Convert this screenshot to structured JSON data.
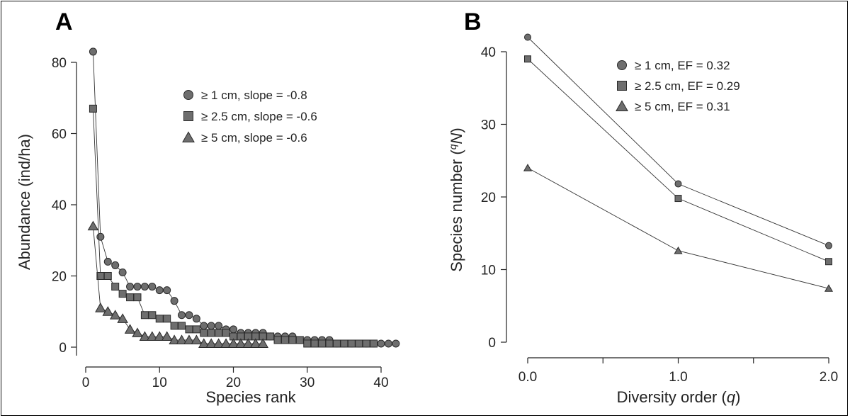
{
  "colors": {
    "marker_fill": "#6e6e6e",
    "marker_stroke": "#2a2a2a",
    "line": "#333333",
    "axis": "#222222"
  },
  "chart_data": [
    {
      "panel_label": "A",
      "type": "line",
      "xlabel": "Species rank",
      "ylabel": "Abundance (ind/ha)",
      "xlim": [
        0,
        43
      ],
      "ylim": [
        0,
        85
      ],
      "xticks": [
        0,
        10,
        20,
        30,
        40
      ],
      "yticks": [
        0,
        20,
        40,
        60,
        80
      ],
      "xtick_labels": [
        "0",
        "10",
        "20",
        "30",
        "40"
      ],
      "ytick_labels": [
        "0",
        "20",
        "40",
        "60",
        "80"
      ],
      "legend_position": "top-right",
      "series": [
        {
          "name": "≥ 1 cm, slope = -0.8",
          "marker": "circle",
          "x": [
            1,
            2,
            3,
            4,
            5,
            6,
            7,
            8,
            9,
            10,
            11,
            12,
            13,
            14,
            15,
            16,
            17,
            18,
            19,
            20,
            21,
            22,
            23,
            24,
            25,
            26,
            27,
            28,
            29,
            30,
            31,
            32,
            33,
            34,
            35,
            36,
            37,
            38,
            39,
            40,
            41,
            42
          ],
          "values": [
            83,
            31,
            24,
            23,
            21,
            17,
            17,
            17,
            17,
            16,
            16,
            13,
            9,
            9,
            8,
            6,
            6,
            6,
            5,
            5,
            4,
            4,
            4,
            4,
            3,
            3,
            3,
            3,
            2,
            2,
            2,
            2,
            2,
            1,
            1,
            1,
            1,
            1,
            1,
            1,
            1,
            1
          ]
        },
        {
          "name": "≥ 2.5 cm, slope = -0.6",
          "marker": "square",
          "x": [
            1,
            2,
            3,
            4,
            5,
            6,
            7,
            8,
            9,
            10,
            11,
            12,
            13,
            14,
            15,
            16,
            17,
            18,
            19,
            20,
            21,
            22,
            23,
            24,
            25,
            26,
            27,
            28,
            29,
            30,
            31,
            32,
            33,
            34,
            35,
            36,
            37,
            38,
            39
          ],
          "values": [
            67,
            20,
            20,
            17,
            15,
            14,
            14,
            9,
            9,
            8,
            8,
            6,
            6,
            5,
            5,
            4,
            4,
            4,
            4,
            3,
            3,
            3,
            3,
            3,
            3,
            2,
            2,
            2,
            2,
            1,
            1,
            1,
            1,
            1,
            1,
            1,
            1,
            1,
            1
          ]
        },
        {
          "name": "≥ 5 cm, slope = -0.6",
          "marker": "triangle",
          "x": [
            1,
            2,
            3,
            4,
            5,
            6,
            7,
            8,
            9,
            10,
            11,
            12,
            13,
            14,
            15,
            16,
            17,
            18,
            19,
            20,
            21,
            22,
            23,
            24
          ],
          "values": [
            34,
            11,
            10,
            9,
            8,
            5,
            4,
            3,
            3,
            3,
            3,
            2,
            2,
            2,
            2,
            1,
            1,
            1,
            1,
            1,
            1,
            1,
            1,
            1
          ]
        }
      ]
    },
    {
      "panel_label": "B",
      "type": "line",
      "xlabel": "Diversity order (q)",
      "xlabel_main": "Diversity order (",
      "xlabel_var": "q",
      "xlabel_end": ")",
      "ylabel": "Species number (qN)",
      "ylabel_main": "Species number (",
      "ylabel_sup": "q",
      "ylabel_var": "N",
      "ylabel_end": ")",
      "xlim": [
        0,
        2
      ],
      "ylim": [
        0,
        42
      ],
      "xticks": [
        0,
        0.5,
        1,
        1.5,
        2
      ],
      "xtick_labels": [
        "0.0",
        "",
        "1.0",
        "",
        "2.0"
      ],
      "yticks": [
        0,
        10,
        20,
        30,
        40
      ],
      "ytick_labels": [
        "0",
        "10",
        "20",
        "30",
        "40"
      ],
      "legend_position": "top-right",
      "series": [
        {
          "name": "≥ 1 cm, EF = 0.32",
          "marker": "circle",
          "x": [
            0,
            1,
            2
          ],
          "values": [
            42,
            21.8,
            13.3
          ]
        },
        {
          "name": "≥ 2.5 cm, EF = 0.29",
          "marker": "square",
          "x": [
            0,
            1,
            2
          ],
          "values": [
            39,
            19.8,
            11.1
          ]
        },
        {
          "name": "≥ 5 cm, EF = 0.31",
          "marker": "triangle",
          "x": [
            0,
            1,
            2
          ],
          "values": [
            24,
            12.6,
            7.4
          ]
        }
      ]
    }
  ]
}
